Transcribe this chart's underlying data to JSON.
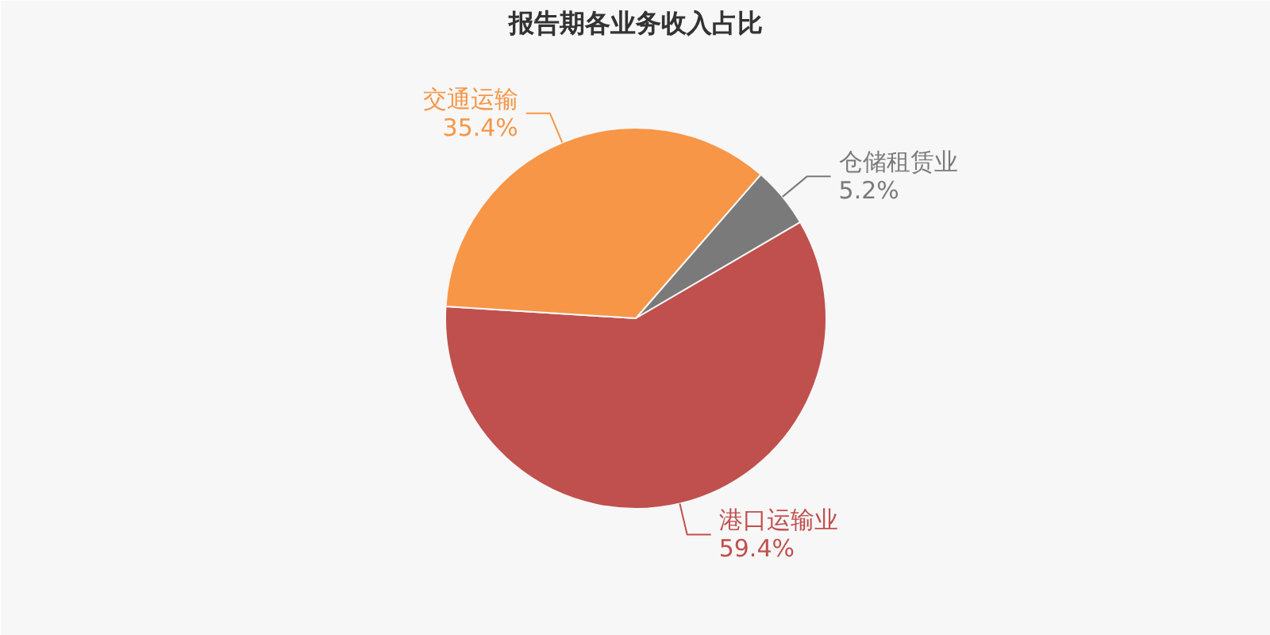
{
  "chart_data": {
    "type": "pie",
    "title": "报告期各业务收入占比",
    "categories": [
      "仓储租赁业",
      "港口运输业",
      "交通运输"
    ],
    "values": [
      5.2,
      59.4,
      35.4
    ],
    "colors": [
      "#7a7a7a",
      "#c0504d",
      "#f79646"
    ],
    "value_labels": [
      "5.2%",
      "59.4%",
      "35.4%"
    ]
  }
}
